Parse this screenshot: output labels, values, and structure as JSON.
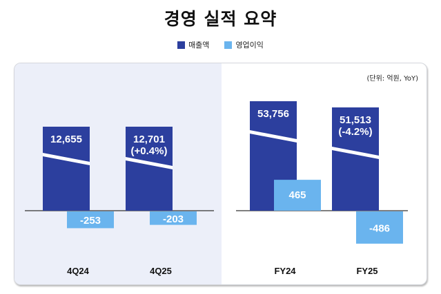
{
  "title": "경영 실적 요약",
  "legend": [
    {
      "label": "매출액",
      "color": "#2c3f9e"
    },
    {
      "label": "영업이익",
      "color": "#6ab4ee"
    }
  ],
  "unit_note": "(단위: 억원,  YoY)",
  "chart_data": {
    "type": "bar",
    "title": "경영 실적 요약",
    "categories": [
      "4Q24",
      "4Q25",
      "FY24",
      "FY25"
    ],
    "groups": [
      {
        "name": "quarterly",
        "categories": [
          "4Q24",
          "4Q25"
        ],
        "highlighted": true
      },
      {
        "name": "annual",
        "categories": [
          "FY24",
          "FY25"
        ],
        "highlighted": false
      }
    ],
    "series": [
      {
        "name": "매출액",
        "color": "#2c3f9e",
        "values": [
          12655,
          12701,
          53756,
          51513
        ],
        "labels": [
          "12,655",
          "12,701",
          "53,756",
          "51,513"
        ],
        "yoy": [
          null,
          "(+0.4%)",
          null,
          "(-4.2%)"
        ],
        "axis_break": true
      },
      {
        "name": "영업이익",
        "color": "#6ab4ee",
        "values": [
          -253,
          -203,
          465,
          -486
        ],
        "labels": [
          "-253",
          "-203",
          "465",
          "-486"
        ]
      }
    ],
    "unit": "억원",
    "xlabel": "",
    "ylabel": "",
    "grid": false,
    "legend_position": "top-center"
  }
}
